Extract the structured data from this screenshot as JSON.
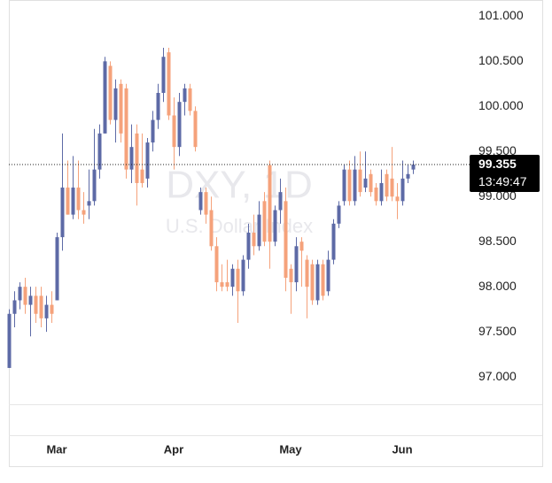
{
  "chart_data": {
    "type": "candlestick",
    "watermark_title": "DXY, 1D",
    "watermark_subtitle": "U.S. Dollar Index",
    "categories": [
      null,
      null,
      null,
      null,
      null,
      null,
      null,
      null,
      null,
      "Mar",
      null,
      null,
      null,
      null,
      null,
      null,
      null,
      null,
      null,
      null,
      null,
      null,
      null,
      null,
      null,
      null,
      null,
      null,
      null,
      null,
      null,
      "Apr",
      null,
      null,
      null,
      null,
      null,
      null,
      null,
      null,
      null,
      null,
      null,
      null,
      null,
      null,
      null,
      null,
      null,
      null,
      null,
      null,
      null,
      "May",
      null,
      null,
      null,
      null,
      null,
      null,
      null,
      null,
      null,
      null,
      null,
      null,
      null,
      null,
      null,
      null,
      null,
      null,
      null,
      null,
      "Jun",
      null,
      null
    ],
    "open": [
      97.1,
      97.7,
      97.85,
      98.0,
      97.8,
      97.9,
      97.9,
      97.65,
      97.8,
      97.85,
      98.55,
      99.1,
      98.8,
      99.1,
      98.85,
      98.9,
      98.95,
      99.3,
      99.7,
      100.45,
      99.85,
      100.25,
      100.2,
      99.3,
      99.7,
      99.3,
      99.2,
      99.6,
      99.85,
      100.15,
      100.6,
      99.9,
      99.55,
      100.05,
      100.2,
      99.95,
      98.85,
      99.05,
      98.85,
      98.45,
      98.05,
      98.05,
      98.0,
      98.2,
      97.95,
      98.3,
      98.6,
      98.45,
      98.95,
      99.35,
      98.5,
      98.85,
      98.95,
      98.2,
      98.05,
      98.5,
      98.3,
      98.25,
      97.85,
      98.25,
      97.95,
      98.3,
      98.7,
      98.95,
      99.3,
      98.95,
      99.3,
      99.1,
      99.25,
      99.1,
      98.95,
      99.25,
      99.2,
      99.0,
      98.95,
      99.2,
      99.3
    ],
    "high": [
      97.75,
      97.95,
      98.05,
      98.1,
      98.0,
      98.0,
      98.0,
      97.9,
      97.95,
      98.6,
      99.7,
      99.4,
      99.45,
      99.4,
      99.05,
      99.3,
      99.75,
      99.8,
      100.55,
      100.5,
      100.3,
      100.3,
      100.25,
      99.8,
      99.8,
      99.7,
      99.65,
      99.95,
      100.25,
      100.65,
      100.65,
      100.1,
      100.15,
      100.25,
      100.25,
      100.0,
      99.1,
      99.1,
      99.0,
      98.55,
      98.25,
      98.3,
      98.25,
      98.3,
      98.35,
      98.7,
      98.8,
      98.95,
      99.05,
      99.4,
      98.9,
      99.2,
      99.1,
      98.25,
      98.55,
      98.55,
      98.35,
      98.3,
      98.3,
      98.3,
      98.4,
      98.75,
      98.95,
      99.35,
      99.4,
      99.45,
      99.5,
      99.5,
      99.3,
      99.15,
      99.3,
      99.3,
      99.55,
      99.15,
      99.4,
      99.35,
      99.4
    ],
    "low": [
      97.1,
      97.55,
      97.75,
      97.7,
      97.45,
      97.6,
      97.55,
      97.5,
      97.6,
      97.85,
      98.4,
      98.8,
      98.75,
      98.75,
      98.7,
      98.75,
      98.9,
      99.2,
      99.7,
      99.8,
      99.6,
      99.6,
      99.2,
      99.15,
      98.9,
      99.1,
      99.1,
      99.5,
      99.75,
      100.05,
      99.85,
      99.3,
      99.45,
      99.9,
      99.9,
      99.5,
      98.8,
      98.7,
      98.4,
      97.95,
      97.95,
      97.95,
      97.9,
      97.6,
      97.9,
      98.2,
      98.35,
      98.4,
      98.45,
      98.2,
      98.45,
      98.7,
      97.95,
      97.7,
      97.95,
      98.0,
      97.65,
      97.8,
      97.8,
      97.85,
      97.9,
      98.25,
      98.65,
      98.9,
      98.9,
      98.9,
      99.0,
      99.05,
      99.0,
      98.9,
      98.9,
      98.95,
      98.95,
      98.75,
      98.9,
      99.15,
      99.25
    ],
    "close": [
      97.7,
      97.85,
      98.0,
      97.8,
      97.9,
      97.7,
      97.65,
      97.8,
      97.7,
      98.55,
      99.1,
      98.8,
      99.1,
      98.85,
      98.8,
      98.95,
      99.3,
      99.7,
      100.5,
      99.85,
      100.2,
      99.7,
      99.3,
      99.55,
      99.15,
      99.15,
      99.6,
      99.85,
      100.15,
      100.55,
      99.9,
      99.55,
      100.05,
      100.2,
      99.95,
      99.55,
      99.05,
      98.8,
      98.45,
      98.05,
      98.0,
      98.0,
      98.2,
      97.95,
      98.3,
      98.6,
      98.45,
      98.8,
      98.5,
      98.5,
      98.85,
      99.05,
      98.1,
      98.05,
      98.45,
      98.4,
      98.0,
      97.85,
      98.25,
      97.9,
      98.3,
      98.7,
      98.9,
      99.3,
      98.95,
      99.3,
      99.05,
      99.2,
      99.05,
      98.95,
      99.15,
      99.0,
      99.0,
      98.95,
      99.2,
      99.25,
      99.355
    ],
    "up_color": "#5d6aa6",
    "down_color": "#f5a27b",
    "current_price": 99.355,
    "countdown": "13:49:47",
    "ylim": [
      96.55,
      101.18
    ],
    "yticks": [
      {
        "value": 97,
        "label": "97.000"
      },
      {
        "value": 97.5,
        "label": "97.500"
      },
      {
        "value": 98,
        "label": "98.000"
      },
      {
        "value": 98.5,
        "label": "98.500"
      },
      {
        "value": 99,
        "label": "99.000"
      },
      {
        "value": 99.5,
        "label": "99.500"
      },
      {
        "value": 100,
        "label": "100.000"
      },
      {
        "value": 100.5,
        "label": "100.500"
      },
      {
        "value": 101,
        "label": "101.000"
      }
    ],
    "grid": false
  }
}
